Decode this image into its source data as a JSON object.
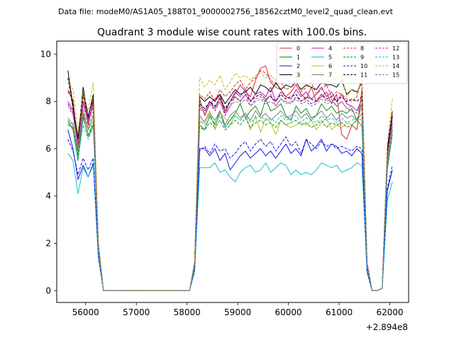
{
  "header": {
    "data_file_label": "Data file: modeM0/AS1A05_188T01_9000002756_18562cztM0_level2_quad_clean.evt"
  },
  "chart_data": {
    "type": "line",
    "title": "Quadrant 3 module wise count rates with 100.0s bins.",
    "xlabel": "",
    "ylabel": "",
    "x_offset_label": "+2.894e8",
    "xlim": [
      55430,
      62370
    ],
    "ylim": [
      -0.5,
      10.55
    ],
    "x_ticks": [
      56000,
      57000,
      58000,
      59000,
      60000,
      61000,
      62000
    ],
    "x_tick_labels": [
      "56000",
      "57000",
      "58000",
      "59000",
      "60000",
      "61000",
      "62000"
    ],
    "y_ticks": [
      0,
      2,
      4,
      6,
      8,
      10
    ],
    "y_tick_labels": [
      "0",
      "2",
      "4",
      "6",
      "8",
      "10"
    ],
    "legend": {
      "placement": "top-right",
      "columns": 4
    },
    "x": [
      55650,
      55750,
      55850,
      55950,
      56050,
      56150,
      56250,
      56350,
      56450,
      56550,
      56650,
      56750,
      56850,
      56950,
      57050,
      57150,
      57250,
      57350,
      57450,
      57550,
      57650,
      57750,
      57850,
      57950,
      58050,
      58150,
      58250,
      58350,
      58450,
      58550,
      58650,
      58750,
      58850,
      58950,
      59050,
      59150,
      59250,
      59350,
      59450,
      59550,
      59650,
      59750,
      59850,
      59950,
      60050,
      60150,
      60250,
      60350,
      60450,
      60550,
      60650,
      60750,
      60850,
      60950,
      61050,
      61150,
      61250,
      61350,
      61450,
      61550,
      61650,
      61750,
      61850,
      61950,
      62050
    ],
    "series": [
      {
        "name": "0",
        "color": "#d62728",
        "dash": "solid",
        "values": [
          8.5,
          8.0,
          6.0,
          8.4,
          7.0,
          8.1,
          2.0,
          0.0,
          0,
          0,
          0,
          0,
          0,
          0,
          0,
          0,
          0,
          0,
          0,
          0,
          0,
          0,
          0,
          0,
          0.0,
          1.2,
          8.1,
          7.4,
          7.9,
          8.1,
          8.3,
          7.6,
          8.0,
          8.3,
          8.7,
          8.4,
          8.2,
          8.9,
          9.4,
          9.5,
          8.8,
          8.6,
          8.5,
          8.2,
          8.4,
          8.7,
          8.3,
          8.1,
          8.6,
          8.0,
          8.2,
          8.4,
          7.9,
          8.3,
          6.6,
          6.4,
          7.0,
          6.8,
          8.5,
          1.1,
          0.0,
          0.0,
          0.1,
          5.5,
          7.4
        ]
      },
      {
        "name": "1",
        "color": "#1a8a1a",
        "dash": "solid",
        "values": [
          7.2,
          6.8,
          5.5,
          7.4,
          6.5,
          7.0,
          1.8,
          0.0,
          0,
          0,
          0,
          0,
          0,
          0,
          0,
          0,
          0,
          0,
          0,
          0,
          0,
          0,
          0,
          0,
          0.0,
          1.1,
          7.0,
          6.8,
          7.4,
          7.0,
          7.6,
          6.9,
          7.2,
          7.5,
          7.9,
          7.3,
          7.6,
          7.8,
          7.4,
          8.1,
          7.6,
          7.7,
          7.9,
          7.4,
          7.2,
          7.8,
          7.5,
          7.7,
          7.3,
          7.4,
          7.9,
          7.6,
          7.8,
          7.5,
          7.6,
          7.5,
          7.7,
          7.2,
          7.8,
          1.0,
          0.0,
          0.0,
          0.1,
          5.2,
          6.8
        ]
      },
      {
        "name": "2",
        "color": "#1515e6",
        "dash": "solid",
        "values": [
          6.8,
          6.0,
          4.7,
          5.3,
          4.8,
          5.4,
          1.5,
          0.0,
          0,
          0,
          0,
          0,
          0,
          0,
          0,
          0,
          0,
          0,
          0,
          0,
          0,
          0,
          0,
          0,
          0.0,
          0.9,
          6.0,
          6.0,
          5.7,
          6.0,
          5.5,
          5.8,
          5.1,
          5.4,
          5.7,
          5.9,
          5.6,
          5.8,
          6.0,
          5.7,
          5.9,
          5.6,
          5.9,
          6.2,
          5.8,
          6.0,
          5.7,
          6.4,
          5.9,
          6.1,
          6.4,
          5.9,
          6.2,
          6.1,
          5.8,
          5.9,
          5.7,
          6.0,
          5.8,
          0.8,
          0.0,
          0.0,
          0.1,
          4.2,
          5.1
        ]
      },
      {
        "name": "3",
        "color": "#000000",
        "dash": "solid",
        "values": [
          9.3,
          7.8,
          6.4,
          8.6,
          7.3,
          8.3,
          2.0,
          0.0,
          0,
          0,
          0,
          0,
          0,
          0,
          0,
          0,
          0,
          0,
          0,
          0,
          0,
          0,
          0,
          0,
          0.0,
          1.2,
          8.2,
          8.0,
          8.2,
          8.0,
          8.3,
          7.9,
          8.2,
          8.5,
          8.3,
          8.4,
          8.6,
          8.3,
          8.7,
          8.6,
          8.4,
          8.8,
          8.5,
          8.7,
          8.6,
          8.8,
          8.5,
          8.7,
          8.6,
          8.5,
          8.8,
          8.7,
          8.7,
          8.6,
          8.9,
          8.3,
          8.5,
          8.4,
          8.8,
          1.2,
          0.0,
          0.0,
          0.1,
          6.0,
          7.6
        ]
      },
      {
        "name": "4",
        "color": "#c010c0",
        "dash": "solid",
        "values": [
          8.0,
          7.6,
          6.2,
          8.0,
          7.2,
          7.9,
          1.9,
          0.0,
          0,
          0,
          0,
          0,
          0,
          0,
          0,
          0,
          0,
          0,
          0,
          0,
          0,
          0,
          0,
          0,
          0.0,
          1.1,
          7.8,
          7.6,
          8.0,
          7.7,
          8.2,
          7.5,
          8.0,
          8.4,
          8.2,
          8.5,
          8.0,
          8.3,
          8.4,
          8.2,
          8.6,
          8.0,
          8.4,
          8.2,
          8.1,
          8.5,
          8.2,
          8.4,
          8.1,
          8.3,
          8.6,
          8.2,
          8.4,
          8.0,
          8.3,
          7.9,
          7.8,
          7.6,
          8.1,
          1.1,
          0.0,
          0.0,
          0.1,
          5.8,
          7.3
        ]
      },
      {
        "name": "5",
        "color": "#17becf",
        "dash": "solid",
        "values": [
          5.8,
          5.5,
          4.1,
          5.2,
          4.8,
          5.3,
          1.4,
          0.0,
          0,
          0,
          0,
          0,
          0,
          0,
          0,
          0,
          0,
          0,
          0,
          0,
          0,
          0,
          0,
          0,
          0.0,
          0.8,
          5.2,
          5.2,
          5.2,
          5.4,
          5.0,
          5.1,
          4.8,
          4.6,
          5.0,
          5.2,
          5.3,
          5.0,
          5.1,
          5.4,
          5.0,
          5.2,
          5.4,
          5.3,
          4.9,
          5.1,
          4.9,
          5.0,
          4.9,
          5.1,
          5.4,
          5.3,
          5.2,
          5.3,
          5.0,
          5.1,
          5.2,
          5.4,
          5.3,
          0.8,
          0.0,
          0.0,
          0.1,
          3.8,
          4.6
        ]
      },
      {
        "name": "6",
        "color": "#bcbd22",
        "dash": "solid",
        "values": [
          7.0,
          7.1,
          5.8,
          7.6,
          6.8,
          7.2,
          1.8,
          0.0,
          0,
          0,
          0,
          0,
          0,
          0,
          0,
          0,
          0,
          0,
          0,
          0,
          0,
          0,
          0,
          0,
          0.0,
          1.0,
          7.1,
          7.2,
          7.6,
          6.8,
          7.5,
          7.3,
          7.0,
          7.4,
          7.2,
          7.5,
          6.8,
          7.4,
          6.7,
          7.3,
          7.1,
          6.6,
          7.2,
          7.0,
          6.9,
          7.0,
          7.1,
          7.0,
          7.2,
          6.8,
          7.1,
          7.3,
          6.8,
          7.0,
          6.9,
          7.1,
          7.0,
          7.2,
          6.9,
          1.0,
          0.0,
          0.0,
          0.1,
          5.1,
          6.6
        ]
      },
      {
        "name": "7",
        "color": "#7f7f7f",
        "dash": "solid",
        "values": [
          7.3,
          7.0,
          5.9,
          7.5,
          6.8,
          7.4,
          1.9,
          0.0,
          0,
          0,
          0,
          0,
          0,
          0,
          0,
          0,
          0,
          0,
          0,
          0,
          0,
          0,
          0,
          0,
          0.0,
          1.0,
          7.4,
          7.1,
          7.5,
          7.2,
          7.6,
          7.0,
          7.4,
          7.6,
          7.3,
          7.5,
          7.2,
          7.6,
          7.3,
          7.5,
          7.2,
          7.4,
          7.6,
          7.3,
          7.4,
          7.6,
          7.3,
          7.5,
          7.2,
          7.4,
          7.6,
          7.3,
          7.5,
          7.2,
          7.5,
          7.3,
          7.4,
          7.2,
          7.5,
          1.0,
          0.0,
          0.0,
          0.1,
          5.3,
          6.9
        ]
      },
      {
        "name": "8",
        "color": "#d62728",
        "dash": "dashed",
        "values": [
          8.4,
          8.1,
          6.2,
          8.3,
          7.1,
          8.0,
          2.0,
          0.0,
          0,
          0,
          0,
          0,
          0,
          0,
          0,
          0,
          0,
          0,
          0,
          0,
          0,
          0,
          0,
          0,
          0.0,
          1.2,
          8.3,
          8.1,
          8.4,
          8.0,
          8.5,
          8.2,
          8.4,
          8.7,
          8.9,
          8.5,
          8.8,
          9.0,
          9.3,
          9.2,
          8.9,
          8.7,
          8.8,
          8.5,
          8.6,
          8.9,
          8.4,
          8.6,
          8.8,
          8.3,
          8.5,
          8.7,
          8.2,
          8.4,
          8.3,
          8.1,
          8.0,
          8.2,
          9.0,
          1.2,
          0.0,
          0.0,
          0.1,
          5.8,
          7.6
        ]
      },
      {
        "name": "9",
        "color": "#1a8a1a",
        "dash": "dashed",
        "values": [
          7.0,
          6.9,
          5.7,
          7.3,
          6.6,
          7.1,
          1.8,
          0.0,
          0,
          0,
          0,
          0,
          0,
          0,
          0,
          0,
          0,
          0,
          0,
          0,
          0,
          0,
          0,
          0,
          0.0,
          1.1,
          6.9,
          6.8,
          7.1,
          6.9,
          7.2,
          6.8,
          7.0,
          7.2,
          7.0,
          7.3,
          6.9,
          7.1,
          7.2,
          7.0,
          7.1,
          6.9,
          7.2,
          7.0,
          7.1,
          7.2,
          7.0,
          7.1,
          6.9,
          7.0,
          7.2,
          6.9,
          7.1,
          7.0,
          7.1,
          6.9,
          7.0,
          7.2,
          7.0,
          1.0,
          0.0,
          0.0,
          0.1,
          5.1,
          6.6
        ]
      },
      {
        "name": "10",
        "color": "#1515e6",
        "dash": "dashed",
        "values": [
          6.4,
          5.9,
          4.9,
          5.6,
          5.1,
          5.6,
          1.5,
          0.0,
          0,
          0,
          0,
          0,
          0,
          0,
          0,
          0,
          0,
          0,
          0,
          0,
          0,
          0,
          0,
          0,
          0.0,
          0.9,
          5.9,
          6.1,
          5.8,
          6.2,
          5.9,
          6.0,
          5.6,
          5.8,
          6.1,
          6.3,
          5.9,
          6.2,
          6.4,
          6.1,
          6.3,
          5.9,
          6.2,
          6.5,
          6.1,
          6.3,
          5.8,
          6.4,
          6.2,
          6.0,
          6.3,
          6.1,
          6.2,
          6.0,
          6.1,
          6.0,
          5.9,
          6.1,
          6.0,
          0.8,
          0.0,
          0.0,
          0.1,
          4.3,
          5.3
        ]
      },
      {
        "name": "11",
        "color": "#000000",
        "dash": "dashed",
        "values": [
          9.0,
          7.7,
          6.5,
          8.3,
          7.4,
          8.1,
          2.0,
          0.0,
          0,
          0,
          0,
          0,
          0,
          0,
          0,
          0,
          0,
          0,
          0,
          0,
          0,
          0,
          0,
          0,
          0.0,
          1.2,
          7.9,
          7.7,
          8.0,
          7.8,
          8.1,
          7.7,
          8.0,
          8.2,
          8.0,
          8.3,
          8.0,
          8.2,
          8.3,
          8.1,
          8.2,
          8.0,
          8.3,
          8.1,
          8.2,
          8.3,
          8.0,
          8.2,
          8.1,
          8.0,
          8.3,
          8.1,
          8.2,
          8.0,
          8.2,
          8.0,
          8.1,
          8.0,
          8.2,
          1.1,
          0.0,
          0.0,
          0.1,
          5.9,
          7.4
        ]
      },
      {
        "name": "12",
        "color": "#c010c0",
        "dash": "dashed",
        "values": [
          7.9,
          7.5,
          6.1,
          7.9,
          7.1,
          7.8,
          1.9,
          0.0,
          0,
          0,
          0,
          0,
          0,
          0,
          0,
          0,
          0,
          0,
          0,
          0,
          0,
          0,
          0,
          0,
          0.0,
          1.1,
          7.7,
          7.5,
          7.9,
          7.6,
          8.0,
          7.4,
          7.8,
          8.2,
          8.0,
          8.3,
          7.8,
          8.1,
          8.2,
          8.0,
          8.3,
          7.8,
          8.1,
          8.0,
          7.9,
          8.2,
          8.0,
          8.1,
          7.9,
          8.0,
          8.3,
          8.0,
          8.1,
          7.8,
          8.0,
          7.7,
          7.6,
          7.5,
          7.9,
          1.1,
          0.0,
          0.0,
          0.1,
          5.7,
          7.1
        ]
      },
      {
        "name": "13",
        "color": "#17becf",
        "dash": "dashed",
        "values": [
          7.1,
          6.9,
          5.6,
          7.0,
          6.4,
          6.9,
          1.7,
          0.0,
          0,
          0,
          0,
          0,
          0,
          0,
          0,
          0,
          0,
          0,
          0,
          0,
          0,
          0,
          0,
          0,
          0.0,
          1.0,
          7.2,
          7.0,
          7.3,
          7.1,
          7.4,
          6.9,
          7.2,
          7.4,
          7.2,
          7.5,
          7.1,
          7.3,
          7.4,
          7.2,
          7.3,
          7.1,
          7.4,
          7.2,
          7.3,
          7.4,
          7.1,
          7.3,
          7.2,
          7.1,
          7.4,
          7.2,
          7.3,
          7.1,
          7.3,
          7.1,
          7.2,
          7.3,
          7.2,
          1.0,
          0.0,
          0.0,
          0.1,
          5.2,
          6.7
        ]
      },
      {
        "name": "14",
        "color": "#bcbd22",
        "dash": "dashed",
        "values": [
          8.9,
          8.5,
          6.7,
          8.4,
          7.6,
          8.8,
          2.1,
          0.0,
          0,
          0,
          0,
          0,
          0,
          0,
          0,
          0,
          0,
          0,
          0,
          0,
          0,
          0,
          0,
          0,
          0.0,
          1.3,
          9.0,
          8.6,
          8.9,
          8.7,
          9.1,
          8.5,
          8.8,
          9.2,
          9.0,
          9.1,
          8.9,
          9.1,
          9.2,
          9.0,
          9.1,
          8.9,
          9.1,
          9.0,
          9.1,
          9.2,
          8.9,
          9.1,
          9.0,
          9.1,
          9.2,
          9.0,
          9.1,
          8.9,
          9.1,
          8.2,
          8.5,
          8.3,
          9.0,
          1.2,
          0.0,
          0.0,
          0.1,
          6.2,
          8.1
        ]
      },
      {
        "name": "15",
        "color": "#7f7f7f",
        "dash": "dashed",
        "values": [
          7.8,
          7.4,
          6.0,
          7.7,
          6.9,
          7.6,
          1.9,
          0.0,
          0,
          0,
          0,
          0,
          0,
          0,
          0,
          0,
          0,
          0,
          0,
          0,
          0,
          0,
          0,
          0,
          0.0,
          1.1,
          7.8,
          7.6,
          7.9,
          7.7,
          8.0,
          7.5,
          7.8,
          8.0,
          7.9,
          8.1,
          7.8,
          8.0,
          8.1,
          7.9,
          8.0,
          7.8,
          8.1,
          7.9,
          8.0,
          8.1,
          7.9,
          8.0,
          7.8,
          7.9,
          8.1,
          7.9,
          8.0,
          7.8,
          8.0,
          7.7,
          7.8,
          7.6,
          7.9,
          1.1,
          0.0,
          0.0,
          0.1,
          5.6,
          7.0
        ]
      }
    ]
  }
}
